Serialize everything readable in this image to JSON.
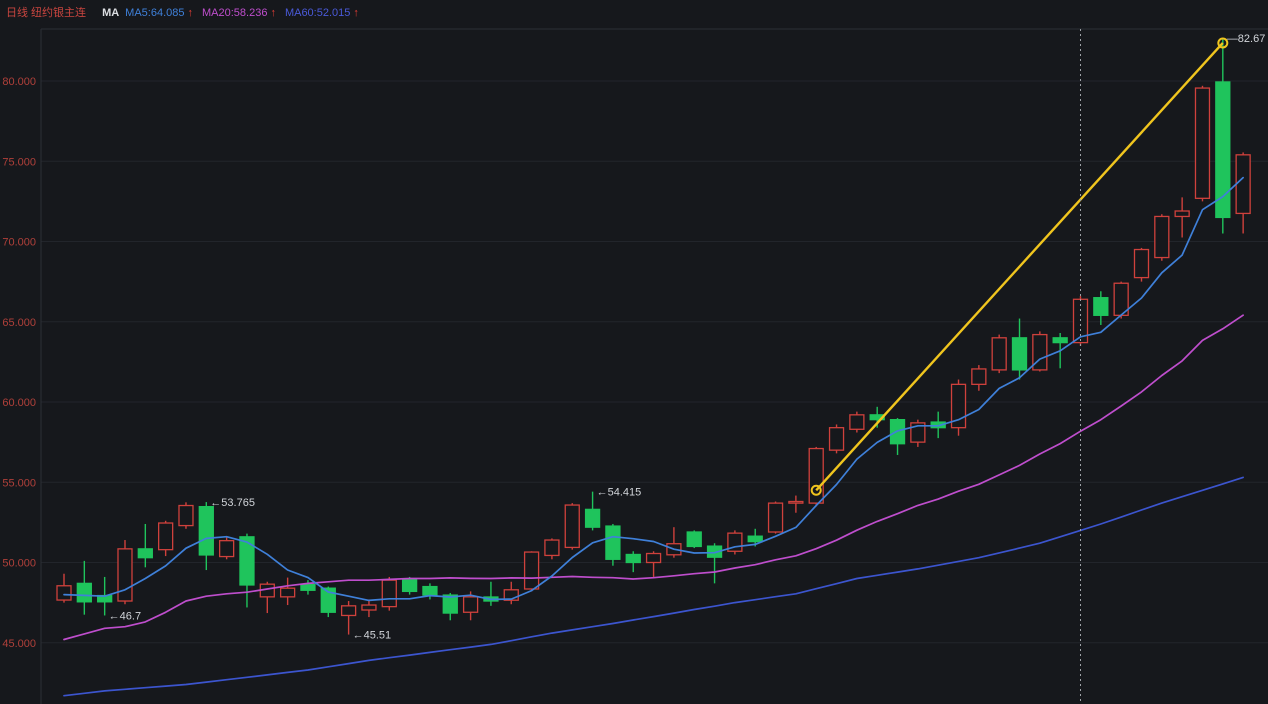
{
  "header": {
    "title": "日线 纽约银主连",
    "ma_label": "MA",
    "legend": [
      {
        "label": "MA5:64.085",
        "arrow": "↑"
      },
      {
        "label": "MA20:58.236",
        "arrow": "↑"
      },
      {
        "label": "MA60:52.015",
        "arrow": "↑"
      }
    ]
  },
  "chart_data": {
    "type": "candlestick",
    "title": "日线 纽约银主连",
    "period": "日线",
    "symbol": "纽约银主连",
    "legend_position": "top-left",
    "grid": "horizontal-only",
    "y_axis": {
      "ticks": [
        "80.000",
        "75.000",
        "70.000",
        "65.000",
        "60.000",
        "55.000",
        "50.000",
        "45.000"
      ],
      "tick_values": [
        80,
        75,
        70,
        65,
        60,
        55,
        50,
        45
      ]
    },
    "candles_columns": [
      "open",
      "high",
      "low",
      "close"
    ],
    "candles": [
      [
        47.66,
        49.3,
        47.5,
        48.55
      ],
      [
        48.7,
        50.1,
        46.75,
        47.55
      ],
      [
        47.94,
        49.1,
        46.7,
        47.55
      ],
      [
        47.6,
        51.4,
        47.4,
        50.85
      ],
      [
        50.85,
        52.4,
        49.7,
        50.3
      ],
      [
        50.8,
        52.6,
        50.4,
        52.46
      ],
      [
        52.3,
        53.75,
        52.1,
        53.55
      ],
      [
        53.48,
        53.765,
        49.53,
        50.47
      ],
      [
        50.37,
        51.6,
        50.2,
        51.36
      ],
      [
        51.6,
        51.8,
        47.2,
        48.6
      ],
      [
        47.86,
        48.8,
        46.85,
        48.65
      ],
      [
        47.86,
        49.06,
        47.35,
        48.4
      ],
      [
        48.63,
        48.9,
        48.0,
        48.27
      ],
      [
        48.4,
        48.5,
        46.6,
        46.9
      ],
      [
        46.7,
        47.6,
        45.51,
        47.3
      ],
      [
        47.04,
        47.7,
        46.6,
        47.35
      ],
      [
        47.25,
        49.1,
        47.0,
        48.9
      ],
      [
        48.95,
        49.1,
        48.0,
        48.2
      ],
      [
        48.5,
        48.7,
        47.7,
        47.97
      ],
      [
        47.97,
        48.1,
        46.4,
        46.85
      ],
      [
        46.9,
        48.2,
        46.4,
        47.86
      ],
      [
        47.85,
        48.8,
        47.3,
        47.6
      ],
      [
        47.65,
        48.8,
        47.4,
        48.3
      ],
      [
        48.35,
        50.7,
        48.2,
        50.65
      ],
      [
        50.44,
        51.5,
        50.2,
        51.4
      ],
      [
        50.94,
        53.7,
        50.8,
        53.58
      ],
      [
        53.31,
        54.415,
        52.0,
        52.2
      ],
      [
        52.27,
        52.4,
        49.8,
        50.2
      ],
      [
        50.5,
        50.7,
        49.4,
        50.0
      ],
      [
        50.0,
        50.7,
        49.1,
        50.56
      ],
      [
        50.48,
        52.2,
        50.3,
        51.17
      ],
      [
        51.9,
        52.0,
        50.9,
        51.0
      ],
      [
        51.02,
        51.2,
        48.7,
        50.33
      ],
      [
        50.7,
        52.0,
        50.5,
        51.83
      ],
      [
        51.64,
        52.1,
        51.0,
        51.3
      ],
      [
        51.9,
        53.8,
        51.8,
        53.7
      ],
      [
        53.7,
        54.17,
        53.1,
        53.8
      ],
      [
        53.7,
        57.2,
        53.5,
        57.1
      ],
      [
        57.0,
        58.6,
        56.8,
        58.4
      ],
      [
        58.3,
        59.4,
        58.1,
        59.2
      ],
      [
        59.2,
        59.7,
        58.4,
        58.9
      ],
      [
        58.9,
        59.0,
        56.7,
        57.4
      ],
      [
        57.5,
        58.9,
        57.2,
        58.7
      ],
      [
        58.75,
        59.4,
        57.75,
        58.4
      ],
      [
        58.4,
        61.4,
        57.9,
        61.1
      ],
      [
        61.1,
        62.3,
        60.7,
        62.06
      ],
      [
        62.0,
        64.2,
        61.8,
        64.0
      ],
      [
        64.0,
        65.2,
        61.4,
        62.0
      ],
      [
        62.0,
        64.4,
        61.9,
        64.2
      ],
      [
        64.0,
        64.3,
        62.1,
        63.7
      ],
      [
        63.7,
        66.6,
        63.5,
        66.4
      ],
      [
        66.5,
        66.9,
        64.8,
        65.4
      ],
      [
        65.4,
        67.5,
        65.2,
        67.4
      ],
      [
        67.75,
        69.6,
        67.5,
        69.5
      ],
      [
        69.0,
        71.7,
        68.8,
        71.56
      ],
      [
        71.56,
        72.75,
        70.25,
        71.9
      ],
      [
        72.69,
        79.7,
        72.5,
        79.56
      ],
      [
        79.94,
        82.67,
        70.5,
        71.5
      ],
      [
        71.75,
        75.55,
        70.5,
        75.4
      ]
    ],
    "series": [
      {
        "name": "MA5",
        "current": "64.085",
        "values": [
          48.0,
          47.95,
          47.9,
          48.3,
          49.0,
          49.79,
          50.89,
          51.5,
          51.61,
          51.27,
          50.51,
          49.53,
          49.06,
          48.16,
          47.9,
          47.64,
          47.74,
          47.74,
          47.94,
          47.85,
          47.96,
          47.7,
          47.72,
          48.25,
          49.16,
          50.31,
          51.23,
          51.61,
          51.48,
          51.31,
          50.83,
          50.59,
          50.61,
          50.98,
          51.13,
          51.63,
          52.19,
          53.55,
          54.86,
          56.44,
          57.48,
          58.2,
          58.52,
          58.52,
          58.9,
          59.53,
          60.85,
          61.51,
          62.67,
          63.19,
          64.06,
          64.34,
          65.42,
          66.48,
          68.05,
          69.15,
          71.98,
          72.8,
          73.98
        ]
      },
      {
        "name": "MA20",
        "current": "58.236",
        "values": [
          45.2,
          45.55,
          45.9,
          46.0,
          46.3,
          46.9,
          47.6,
          47.9,
          48.05,
          48.15,
          48.35,
          48.55,
          48.7,
          48.8,
          48.9,
          48.9,
          48.95,
          49.0,
          49.0,
          49.04,
          49.01,
          49.0,
          49.04,
          49.03,
          49.08,
          49.13,
          49.08,
          49.05,
          48.97,
          49.05,
          49.17,
          49.3,
          49.41,
          49.66,
          49.86,
          50.17,
          50.42,
          50.86,
          51.39,
          52.01,
          52.56,
          53.04,
          53.56,
          53.95,
          54.44,
          54.87,
          55.46,
          56.05,
          56.76,
          57.41,
          58.18,
          58.9,
          59.75,
          60.63,
          61.65,
          62.56,
          63.84,
          64.56,
          65.41
        ]
      },
      {
        "name": "MA60",
        "current": "52.015",
        "values": [
          41.7,
          41.85,
          42.0,
          42.1,
          42.2,
          42.3,
          42.4,
          42.55,
          42.7,
          42.85,
          43.0,
          43.15,
          43.3,
          43.5,
          43.7,
          43.9,
          44.07,
          44.23,
          44.4,
          44.57,
          44.73,
          44.9,
          45.13,
          45.37,
          45.6,
          45.8,
          46.0,
          46.2,
          46.42,
          46.63,
          46.85,
          47.07,
          47.28,
          47.5,
          47.68,
          47.87,
          48.05,
          48.37,
          48.68,
          49.0,
          49.2,
          49.4,
          49.6,
          49.83,
          50.07,
          50.3,
          50.6,
          50.9,
          51.2,
          51.6,
          52.0,
          52.4,
          52.83,
          53.27,
          53.7,
          54.1,
          54.5,
          54.9,
          55.3
        ]
      }
    ],
    "annotations": [
      {
        "candle": 3,
        "price": 46.7,
        "text": "←46.7"
      },
      {
        "candle": 8,
        "price": 53.765,
        "text": "←53.765"
      },
      {
        "candle": 15,
        "price": 45.51,
        "text": "←45.51"
      },
      {
        "candle": 27,
        "price": 54.415,
        "text": "←54.415"
      },
      {
        "candle": 58,
        "price": 82.67,
        "text": "—82.67"
      }
    ],
    "trendline": {
      "from_candle": 38,
      "from_price": 54.5,
      "to_candle": 58,
      "to_price": 82.37
    },
    "crosshair": {
      "candle": 51
    },
    "colors": {
      "background": "#16181c",
      "grid": "#22252b",
      "border": "#2c2f36",
      "axis_label": "#b0403a",
      "up": "#cf413c",
      "down": "#1fc45c",
      "ma5": "#3f80d9",
      "ma20": "#bf4ecd",
      "ma60": "#3c55cf",
      "trend": "#f0c51e",
      "crosshair": "#9fa3a8",
      "annotation": "#d2d5da"
    }
  }
}
